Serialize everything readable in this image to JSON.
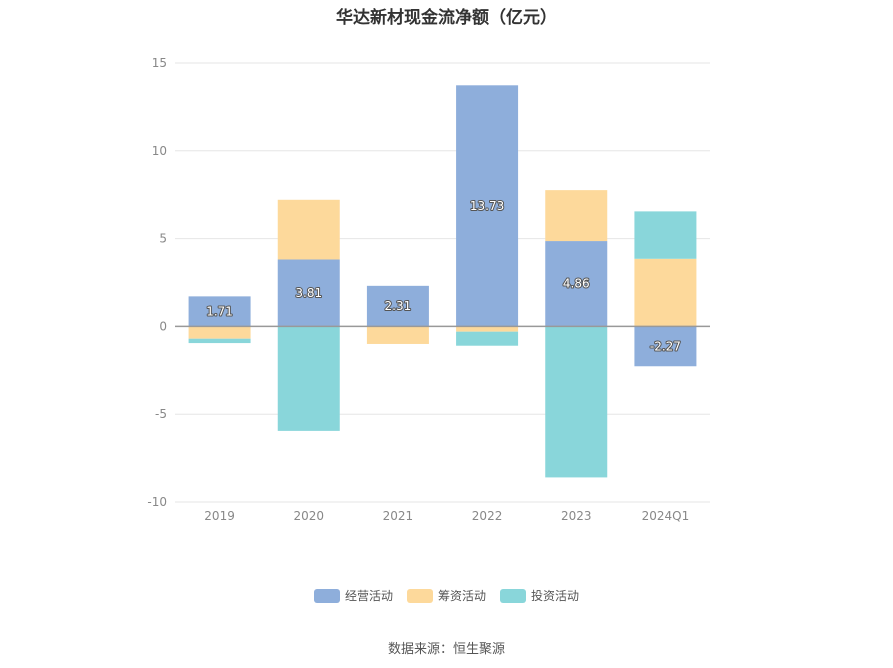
{
  "chart_data": {
    "type": "bar",
    "stacked": true,
    "title": "华达新材现金流净额（亿元）",
    "categories": [
      "2019",
      "2020",
      "2021",
      "2022",
      "2023",
      "2024Q1"
    ],
    "series": [
      {
        "name": "经营活动",
        "color": "#8eaedb",
        "values": [
          1.71,
          3.81,
          2.31,
          13.73,
          4.86,
          -2.27
        ],
        "labels": [
          "1.71",
          "3.81",
          "2.31",
          "13.73",
          "4.86",
          "-2.27"
        ]
      },
      {
        "name": "筹资活动",
        "color": "#fdd99b",
        "values": [
          -0.7,
          3.4,
          -1.0,
          -0.3,
          2.9,
          3.85
        ]
      },
      {
        "name": "投资活动",
        "color": "#89d6da",
        "values": [
          -0.25,
          -5.95,
          0.0,
          -0.8,
          -8.6,
          2.7
        ]
      }
    ],
    "ylim": [
      -10,
      15
    ],
    "yticks": [
      "15",
      "10",
      "5",
      "0",
      "-5",
      "-10"
    ],
    "ytick_values": [
      15,
      10,
      5,
      0,
      -5,
      -10
    ],
    "grid": true,
    "legend_position": "bottom"
  },
  "source": "数据来源：恒生聚源"
}
